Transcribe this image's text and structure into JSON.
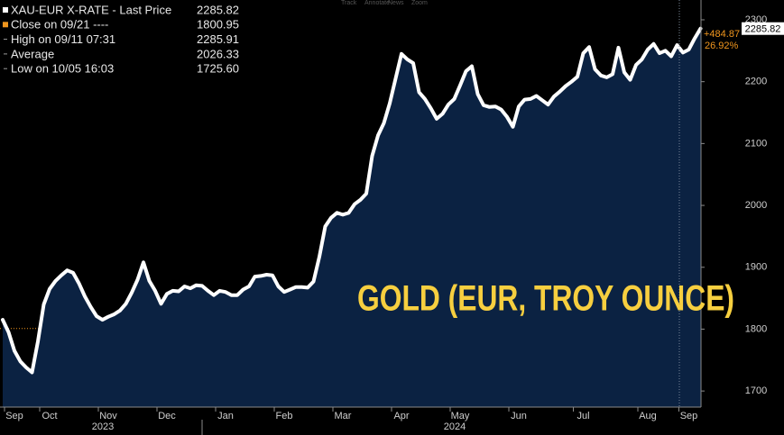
{
  "toolbar": [
    "Track",
    "Annotate",
    "News",
    "Zoom"
  ],
  "chart_data": {
    "type": "line",
    "annotation": "GOLD (EUR, TROY OUNCE)",
    "annotation_color": "#f7cf3f",
    "categories": [
      null,
      null,
      "Sep",
      null,
      null,
      null,
      null,
      null,
      "Oct",
      null,
      null,
      null,
      null,
      null,
      null,
      null,
      null,
      null,
      "Nov",
      null,
      null,
      null,
      null,
      null,
      null,
      null,
      null,
      null,
      "Dec",
      null,
      null,
      null,
      null,
      null,
      null,
      null,
      null,
      null,
      "Jan",
      null,
      null,
      null,
      null,
      null,
      null,
      null,
      null,
      null,
      "Feb",
      null,
      null,
      null,
      null,
      null,
      null,
      null,
      null,
      null,
      "Mar",
      null,
      null,
      null,
      null,
      null,
      null,
      null,
      null,
      null,
      "Apr",
      null,
      null,
      null,
      null,
      null,
      null,
      null,
      null,
      null,
      "May",
      null,
      null,
      null,
      null,
      null,
      null,
      null,
      null,
      null,
      "Jun",
      null,
      null,
      null,
      null,
      null,
      null,
      null,
      null,
      null,
      null,
      "Jul",
      null,
      null,
      null,
      null,
      null,
      null,
      null,
      null,
      null,
      null,
      "Aug",
      null,
      null,
      null,
      null,
      null,
      null,
      "Sep",
      null,
      null
    ],
    "x_group_labels": [
      "2023",
      "2024"
    ],
    "series": [
      {
        "name": "XAU-EUR X-RATE - Last Price",
        "color": "#ffffff",
        "fill": "#0b2242",
        "values": [
          1815,
          1795,
          1765,
          1748,
          1738,
          1730,
          1780,
          1840,
          1865,
          1878,
          1887,
          1895,
          1891,
          1874,
          1853,
          1836,
          1821,
          1815,
          1820,
          1824,
          1830,
          1841,
          1859,
          1880,
          1908,
          1878,
          1862,
          1841,
          1857,
          1862,
          1861,
          1869,
          1866,
          1871,
          1870,
          1862,
          1855,
          1862,
          1860,
          1855,
          1855,
          1864,
          1869,
          1885,
          1886,
          1888,
          1887,
          1869,
          1860,
          1864,
          1868,
          1868,
          1867,
          1877,
          1917,
          1966,
          1980,
          1988,
          1985,
          1988,
          2002,
          2009,
          2019,
          2080,
          2113,
          2133,
          2165,
          2205,
          2245,
          2236,
          2230,
          2183,
          2172,
          2157,
          2140,
          2148,
          2163,
          2172,
          2194,
          2217,
          2225,
          2180,
          2162,
          2159,
          2160,
          2155,
          2143,
          2127,
          2160,
          2171,
          2172,
          2177,
          2170,
          2163,
          2176,
          2184,
          2193,
          2200,
          2208,
          2246,
          2256,
          2220,
          2210,
          2207,
          2212,
          2255,
          2215,
          2203,
          2227,
          2236,
          2252,
          2261,
          2246,
          2250,
          2241,
          2259,
          2247,
          2252,
          2270,
          2285.82
        ]
      }
    ],
    "legend_stats": [
      {
        "name": "Close on 09/21 ----",
        "value": 1800.95,
        "color": "#f0961e"
      },
      {
        "name": "High on 09/11 07:31",
        "value": 2285.91
      },
      {
        "name": "Average",
        "value": 2026.33
      },
      {
        "name": "Low on 10/05 16:03",
        "value": 1725.6,
        "value_label": "1725.60"
      }
    ],
    "change": {
      "value": 484.87,
      "label": "+484.87"
    },
    "change_percent": {
      "value": 26.92,
      "label": "26.92%"
    },
    "change_color": "#f0961e",
    "ylim": [
      1674,
      2332
    ],
    "yticks": [
      1700,
      1800,
      1900,
      2000,
      2100,
      2200,
      2300
    ],
    "grid": false
  }
}
